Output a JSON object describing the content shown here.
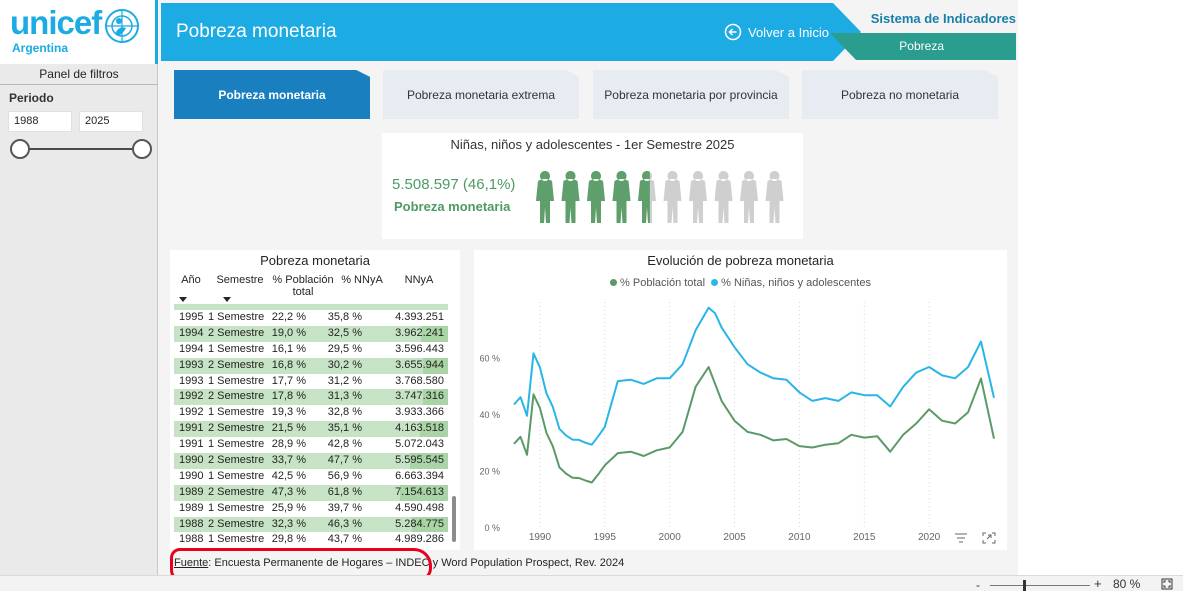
{
  "logo": {
    "word": "unicef",
    "country": "Argentina"
  },
  "filters": {
    "title": "Panel de filtros",
    "period_label": "Periodo",
    "year_from": "1988",
    "year_to": "2025",
    "range_fraction": [
      0,
      1
    ]
  },
  "header": {
    "title": "Pobreza monetaria",
    "back_label": "Volver a Inicio",
    "system_title": "Sistema de Indicadores",
    "system_section": "Pobreza"
  },
  "tabs": [
    {
      "label": "Pobreza monetaria",
      "active": true
    },
    {
      "label": "Pobreza monetaria extrema",
      "active": false
    },
    {
      "label": "Pobreza monetaria por provincia",
      "active": false
    },
    {
      "label": "Pobreza no monetaria",
      "active": false
    }
  ],
  "kpi": {
    "title": "Niñas, niños y adolescentes - 1er Semestre 2025",
    "value": "5.508.597 (46,1%)",
    "label": "Pobreza monetaria",
    "figures_total": 10,
    "figures_filled": 4.61
  },
  "table": {
    "title": "Pobreza monetaria",
    "columns": [
      "Año",
      "Semestre",
      "% Población total",
      "% NNyA",
      "NNyA"
    ],
    "rows": [
      [
        "1995",
        "1 Semestre",
        "22,2 %",
        "35,8 %",
        "4.393.251",
        false
      ],
      [
        "1994",
        "2 Semestre",
        "19,0 %",
        "32,5 %",
        "3.962.241",
        true
      ],
      [
        "1994",
        "1 Semestre",
        "16,1 %",
        "29,5 %",
        "3.596.443",
        false
      ],
      [
        "1993",
        "2 Semestre",
        "16,8 %",
        "30,2 %",
        "3.655.944",
        true
      ],
      [
        "1993",
        "1 Semestre",
        "17,7 %",
        "31,2 %",
        "3.768.580",
        false
      ],
      [
        "1992",
        "2 Semestre",
        "17,8 %",
        "31,3 %",
        "3.747.316",
        true
      ],
      [
        "1992",
        "1 Semestre",
        "19,3 %",
        "32,8 %",
        "3.933.366",
        false
      ],
      [
        "1991",
        "2 Semestre",
        "21,5 %",
        "35,1 %",
        "4.163.518",
        true
      ],
      [
        "1991",
        "1 Semestre",
        "28,9 %",
        "42,8 %",
        "5.072.043",
        false
      ],
      [
        "1990",
        "2 Semestre",
        "33,7 %",
        "47,7 %",
        "5.595.545",
        true
      ],
      [
        "1990",
        "1 Semestre",
        "42,5 %",
        "56,9 %",
        "6.663.394",
        false
      ],
      [
        "1989",
        "2 Semestre",
        "47,3 %",
        "61,8 %",
        "7.154.613",
        true
      ],
      [
        "1989",
        "1 Semestre",
        "25,9 %",
        "39,7 %",
        "4.590.498",
        false
      ],
      [
        "1988",
        "2 Semestre",
        "32,3 %",
        "46,3 %",
        "5.284.775",
        true
      ],
      [
        "1988",
        "1 Semestre",
        "29,8 %",
        "43,7 %",
        "4.989.286",
        false
      ]
    ]
  },
  "chart_data": {
    "type": "line",
    "title": "Evolución de pobreza monetaria",
    "xlabel": "",
    "ylabel": "",
    "xlim": [
      1988,
      2025
    ],
    "ylim": [
      0,
      80
    ],
    "x_ticks": [
      "1990",
      "1995",
      "2000",
      "2005",
      "2010",
      "2015",
      "2020"
    ],
    "y_ticks": [
      "0 %",
      "20 %",
      "40 %",
      "60 %"
    ],
    "grid": "vertical dotted",
    "legend_position": "top",
    "series": [
      {
        "name": "% Población total",
        "color": "#5b9a68",
        "points": [
          [
            1988.0,
            29.8
          ],
          [
            1988.5,
            32.3
          ],
          [
            1989.0,
            25.9
          ],
          [
            1989.5,
            47.3
          ],
          [
            1990.0,
            42.5
          ],
          [
            1990.5,
            33.7
          ],
          [
            1991.0,
            28.9
          ],
          [
            1991.5,
            21.5
          ],
          [
            1992.0,
            19.3
          ],
          [
            1992.5,
            17.8
          ],
          [
            1993.0,
            17.7
          ],
          [
            1993.5,
            16.8
          ],
          [
            1994.0,
            16.1
          ],
          [
            1994.5,
            19.0
          ],
          [
            1995.0,
            22.2
          ],
          [
            1996.0,
            26.5
          ],
          [
            1997.0,
            27.0
          ],
          [
            1998.0,
            25.5
          ],
          [
            1999.0,
            27.5
          ],
          [
            2000.0,
            28.5
          ],
          [
            2001.0,
            34.0
          ],
          [
            2002.0,
            50.0
          ],
          [
            2003.0,
            57.0
          ],
          [
            2003.5,
            51.0
          ],
          [
            2004.0,
            45.0
          ],
          [
            2005.0,
            38.0
          ],
          [
            2006.0,
            34.0
          ],
          [
            2007.0,
            33.0
          ],
          [
            2008.0,
            31.0
          ],
          [
            2009.0,
            31.5
          ],
          [
            2010.0,
            29.0
          ],
          [
            2011.0,
            28.5
          ],
          [
            2012.0,
            29.5
          ],
          [
            2013.0,
            30.0
          ],
          [
            2014.0,
            33.0
          ],
          [
            2015.0,
            32.0
          ],
          [
            2016.0,
            32.5
          ],
          [
            2017.0,
            27.0
          ],
          [
            2018.0,
            33.0
          ],
          [
            2019.0,
            37.0
          ],
          [
            2020.0,
            42.0
          ],
          [
            2021.0,
            38.0
          ],
          [
            2022.0,
            37.0
          ],
          [
            2023.0,
            41.0
          ],
          [
            2024.0,
            52.9
          ],
          [
            2025.0,
            31.6
          ]
        ]
      },
      {
        "name": "% Niñas, niños y adolescentes",
        "color": "#29b5e8",
        "points": [
          [
            1988.0,
            43.7
          ],
          [
            1988.5,
            46.3
          ],
          [
            1989.0,
            39.7
          ],
          [
            1989.5,
            61.8
          ],
          [
            1990.0,
            56.9
          ],
          [
            1990.5,
            47.7
          ],
          [
            1991.0,
            42.8
          ],
          [
            1991.5,
            35.1
          ],
          [
            1992.0,
            32.8
          ],
          [
            1992.5,
            31.3
          ],
          [
            1993.0,
            31.2
          ],
          [
            1993.5,
            30.2
          ],
          [
            1994.0,
            29.5
          ],
          [
            1994.5,
            32.5
          ],
          [
            1995.0,
            35.8
          ],
          [
            1996.0,
            52.0
          ],
          [
            1997.0,
            52.5
          ],
          [
            1998.0,
            51.0
          ],
          [
            1999.0,
            53.0
          ],
          [
            2000.0,
            53.0
          ],
          [
            2001.0,
            58.0
          ],
          [
            2002.0,
            70.0
          ],
          [
            2003.0,
            78.0
          ],
          [
            2003.5,
            76.0
          ],
          [
            2004.0,
            71.0
          ],
          [
            2005.0,
            64.0
          ],
          [
            2006.0,
            58.0
          ],
          [
            2007.0,
            55.0
          ],
          [
            2008.0,
            53.0
          ],
          [
            2009.0,
            52.5
          ],
          [
            2010.0,
            48.0
          ],
          [
            2011.0,
            45.0
          ],
          [
            2012.0,
            46.0
          ],
          [
            2013.0,
            45.0
          ],
          [
            2014.0,
            48.0
          ],
          [
            2015.0,
            47.0
          ],
          [
            2016.0,
            47.0
          ],
          [
            2017.0,
            43.0
          ],
          [
            2018.0,
            50.0
          ],
          [
            2019.0,
            55.0
          ],
          [
            2020.0,
            57.0
          ],
          [
            2021.0,
            54.0
          ],
          [
            2022.0,
            53.0
          ],
          [
            2023.0,
            57.0
          ],
          [
            2024.0,
            66.0
          ],
          [
            2025.0,
            46.1
          ]
        ]
      }
    ]
  },
  "source": {
    "prefix": "Fuente",
    "text": ": Encuesta Permanente de Hogares – INDEC y Word Population Prospect, Rev. 2024"
  },
  "statusbar": {
    "minus": "-",
    "plus": "+",
    "zoom": "80 %",
    "zoom_fraction": 0.34
  },
  "colors": {
    "brand": "#1cabe2",
    "accent_teal": "#2a9d8f",
    "tab_active": "#1a7fbf",
    "kpi_green": "#4e9a62",
    "row_shade": "#c6e3c5"
  }
}
